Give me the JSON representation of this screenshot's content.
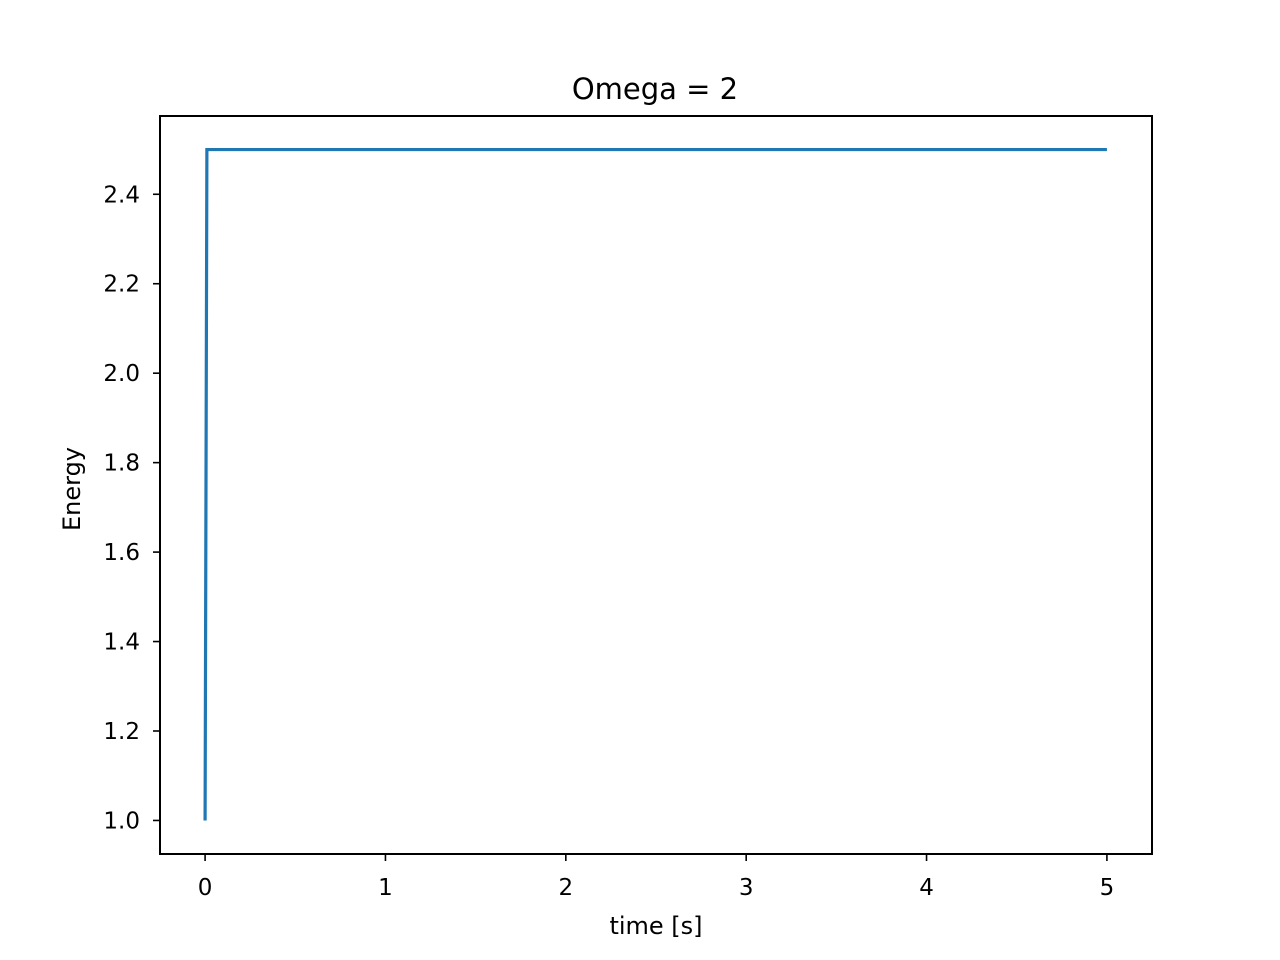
{
  "chart_data": {
    "type": "line",
    "title": "Omega = 2",
    "xlabel": "time [s]",
    "ylabel": "Energy",
    "xlim": [
      -0.25,
      5.25
    ],
    "ylim": [
      0.925,
      2.575
    ],
    "xticks": [
      0,
      1,
      2,
      3,
      4,
      5
    ],
    "xtick_labels": [
      "0",
      "1",
      "2",
      "3",
      "4",
      "5"
    ],
    "yticks": [
      1.0,
      1.2,
      1.4,
      1.6,
      1.8,
      2.0,
      2.2,
      2.4
    ],
    "ytick_labels": [
      "1.0",
      "1.2",
      "1.4",
      "1.6",
      "1.8",
      "2.0",
      "2.2",
      "2.4"
    ],
    "grid": false,
    "series": [
      {
        "color": "#1f77b4",
        "x": [
          0.0,
          0.01,
          5.0
        ],
        "y": [
          1.0,
          2.5,
          2.5
        ]
      }
    ]
  }
}
